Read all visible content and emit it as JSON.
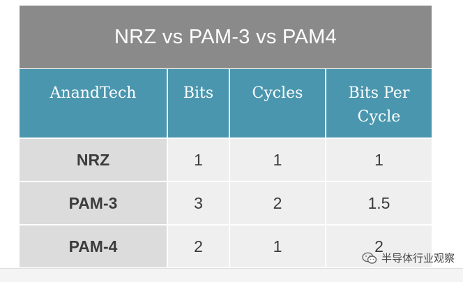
{
  "title": "NRZ vs PAM-3 vs PAM4",
  "headers": [
    "AnandTech",
    "Bits",
    "Cycles",
    "Bits Per\nCycle"
  ],
  "rows": [
    {
      "label": "NRZ",
      "bits": "1",
      "cycles": "1",
      "bits_per_cycle": "1"
    },
    {
      "label": "PAM-3",
      "bits": "3",
      "cycles": "2",
      "bits_per_cycle": "1.5"
    },
    {
      "label": "PAM-4",
      "bits": "2",
      "cycles": "1",
      "bits_per_cycle": "2"
    }
  ],
  "watermark": {
    "text": "半导体行业观察",
    "icon": "wechat-icon"
  },
  "colors": {
    "title_bg": "#8a8a8a",
    "header_bg": "#4a96ae",
    "label_bg": "#dcdcdc",
    "cell_bg": "#efefef"
  }
}
